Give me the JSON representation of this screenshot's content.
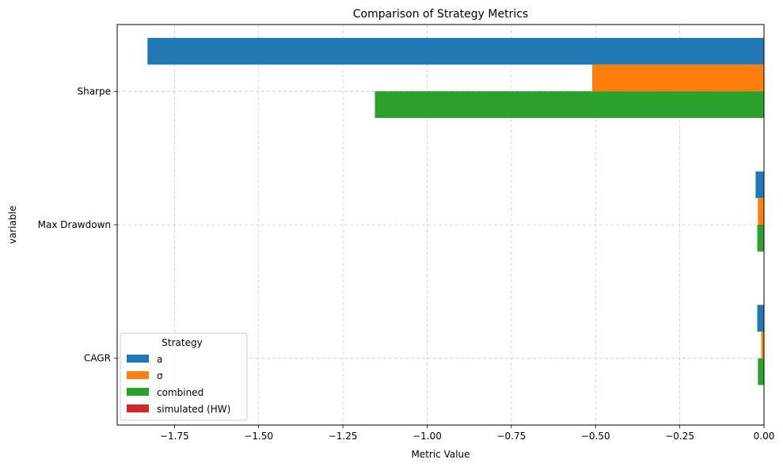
{
  "chart_data": {
    "type": "bar",
    "orientation": "horizontal",
    "title": "Comparison of Strategy Metrics",
    "xlabel": "Metric Value",
    "ylabel": "variable",
    "xlim": [
      -1.92,
      0.0
    ],
    "xticks": [
      -1.75,
      -1.5,
      -1.25,
      -1.0,
      -0.75,
      -0.5,
      -0.25,
      0.0
    ],
    "xtick_labels": [
      "−1.75",
      "−1.50",
      "−1.25",
      "−1.00",
      "−0.75",
      "−0.50",
      "−0.25",
      "0.00"
    ],
    "categories": [
      "Sharpe",
      "Max Drawdown",
      "CAGR"
    ],
    "series": [
      {
        "name": "a",
        "color": "#1f77b4",
        "values": [
          -1.83,
          -0.025,
          -0.02
        ]
      },
      {
        "name": "σ",
        "color": "#ff7f0e",
        "values": [
          -0.51,
          -0.018,
          -0.008
        ]
      },
      {
        "name": "combined",
        "color": "#2ca02c",
        "values": [
          -1.155,
          -0.02,
          -0.018
        ]
      },
      {
        "name": "simulated (HW)",
        "color": "#d62728",
        "values": [
          0,
          0,
          0
        ]
      }
    ],
    "legend": {
      "title": "Strategy",
      "location": "lower-left"
    },
    "grid": true
  }
}
